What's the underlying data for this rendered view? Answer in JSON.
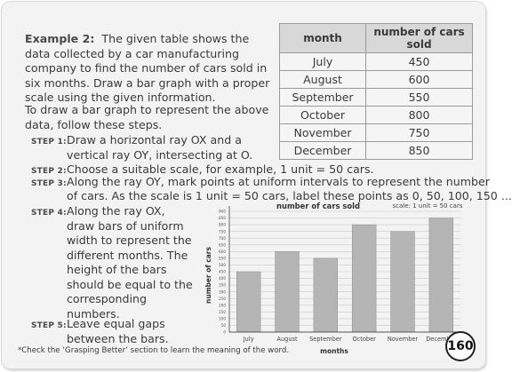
{
  "example": {
    "label": "Example 2:",
    "text": "The given table shows the data collected by a car manufacturing company to find the number of cars sold in six months. Draw a bar graph with a proper scale using the given information.",
    "para2": "To draw a bar graph to represent the above data, follow these steps."
  },
  "steps": [
    {
      "label": "STEP 1:",
      "text": "Draw a horizontal ray OX and a vertical ray OY, intersecting at O."
    },
    {
      "label": "STEP 2:",
      "text": "Choose a suitable scale, for example, 1 unit = 50 cars."
    },
    {
      "label": "STEP 3:",
      "line1": "Along the ray OY, mark points at uniform intervals to represent the number",
      "line2": "of cars. As the scale is 1 unit = 50 cars, label these points as 0, 50, 100, 150 ..."
    },
    {
      "label": "STEP 4:",
      "text": "Along the ray OX, draw bars of uniform width to represent the different months. The height of the bars should be equal to the corresponding numbers."
    },
    {
      "label": "STEP 5:",
      "text": "Leave equal gaps between the bars."
    }
  ],
  "table": {
    "headers": [
      "month",
      "number of cars sold"
    ],
    "rows": [
      [
        "July",
        "450"
      ],
      [
        "August",
        "600"
      ],
      [
        "September",
        "550"
      ],
      [
        "October",
        "800"
      ],
      [
        "November",
        "750"
      ],
      [
        "December",
        "850"
      ]
    ]
  },
  "chart_data": {
    "type": "bar",
    "title": "number of cars sold",
    "scale_note": "scale: 1 unit = 50 cars",
    "xlabel": "months",
    "ylabel": "number of cars",
    "categories": [
      "July",
      "August",
      "September",
      "October",
      "November",
      "December"
    ],
    "values": [
      450,
      600,
      550,
      800,
      750,
      850
    ],
    "ylim": [
      0,
      900
    ],
    "yticks": [
      0,
      50,
      100,
      150,
      200,
      250,
      300,
      350,
      400,
      450,
      500,
      550,
      600,
      650,
      700,
      750,
      800,
      850,
      900
    ],
    "grid": true,
    "bar_color": "#b5b5b5"
  },
  "footnote": "*Check the ‘Grasping Better’ section to learn the meaning of the word.",
  "page_number": "160"
}
